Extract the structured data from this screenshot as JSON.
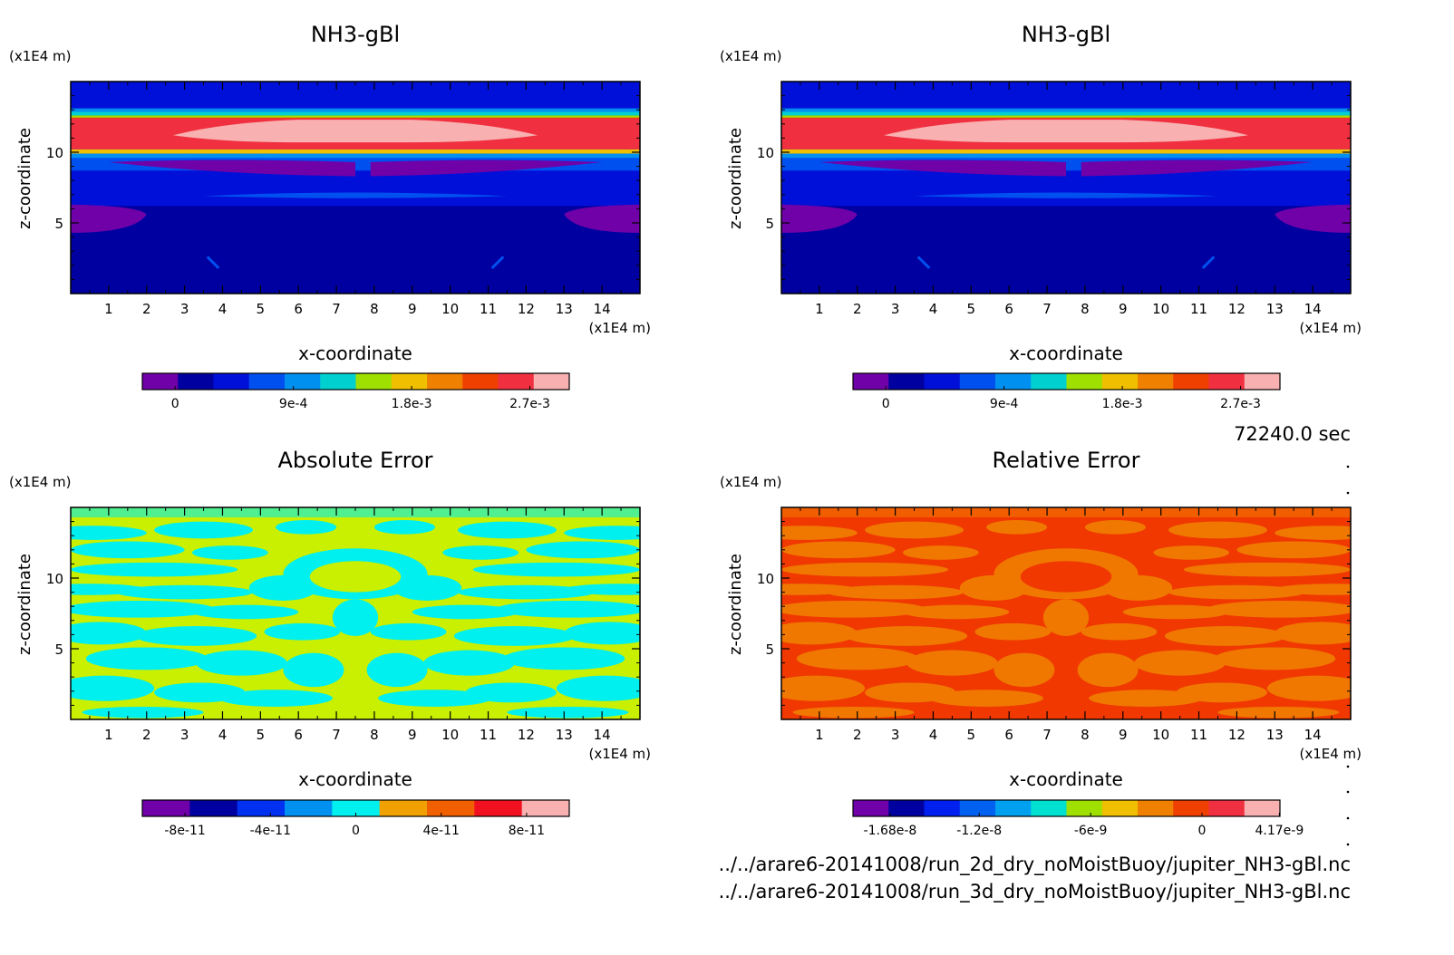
{
  "chart_data": [
    {
      "type": "heatmap",
      "title": "NH3-gBl",
      "xlabel": "x-coordinate",
      "ylabel": "z-coordinate",
      "x_unit": "(x1E4 m)",
      "y_unit": "(x1E4 m)",
      "x_ticks": [
        "1",
        "2",
        "3",
        "4",
        "5",
        "6",
        "7",
        "8",
        "9",
        "10",
        "11",
        "12",
        "13",
        "14"
      ],
      "y_ticks": [
        "5",
        "10"
      ],
      "xlim": [
        0,
        15
      ],
      "ylim": [
        0,
        15
      ],
      "field": "mixing-ratio-bands",
      "colorbar": {
        "colors": [
          "#7000a8",
          "#0000a0",
          "#0010d8",
          "#0050f0",
          "#0090f0",
          "#00d0d0",
          "#a0e000",
          "#f0c000",
          "#f08000",
          "#f04000",
          "#f03040",
          "#f8b0b0"
        ],
        "tick_labels": [
          "0",
          "9e-4",
          "1.8e-3",
          "2.7e-3"
        ],
        "tick_values": [
          0,
          0.0009,
          0.0018,
          0.0027
        ],
        "range": [
          -0.00025,
          0.003
        ]
      }
    },
    {
      "type": "heatmap",
      "title": "NH3-gBl",
      "xlabel": "x-coordinate",
      "ylabel": "z-coordinate",
      "x_unit": "(x1E4 m)",
      "y_unit": "(x1E4 m)",
      "x_ticks": [
        "1",
        "2",
        "3",
        "4",
        "5",
        "6",
        "7",
        "8",
        "9",
        "10",
        "11",
        "12",
        "13",
        "14"
      ],
      "y_ticks": [
        "5",
        "10"
      ],
      "xlim": [
        0,
        15
      ],
      "ylim": [
        0,
        15
      ],
      "field": "mixing-ratio-bands",
      "colorbar": {
        "colors": [
          "#7000a8",
          "#0000a0",
          "#0010d8",
          "#0050f0",
          "#0090f0",
          "#00d0d0",
          "#a0e000",
          "#f0c000",
          "#f08000",
          "#f04000",
          "#f03040",
          "#f8b0b0"
        ],
        "tick_labels": [
          "0",
          "9e-4",
          "1.8e-3",
          "2.7e-3"
        ],
        "tick_values": [
          0,
          0.0009,
          0.0018,
          0.0027
        ],
        "range": [
          -0.00025,
          0.003
        ]
      }
    },
    {
      "type": "heatmap",
      "title": "Absolute Error",
      "xlabel": "x-coordinate",
      "ylabel": "z-coordinate",
      "x_unit": "(x1E4 m)",
      "y_unit": "(x1E4 m)",
      "x_ticks": [
        "1",
        "2",
        "3",
        "4",
        "5",
        "6",
        "7",
        "8",
        "9",
        "10",
        "11",
        "12",
        "13",
        "14"
      ],
      "y_ticks": [
        "5",
        "10"
      ],
      "xlim": [
        0,
        15
      ],
      "ylim": [
        0,
        15
      ],
      "field": "error-pattern",
      "pattern_colors": [
        "#00f0f0",
        "#c8f000"
      ],
      "colorbar": {
        "colors": [
          "#7000a8",
          "#0000a0",
          "#0030f0",
          "#0090f0",
          "#00f0f0",
          "#f0a000",
          "#f06000",
          "#f01020",
          "#f8b0b0"
        ],
        "tick_labels": [
          "-8e-11",
          "-4e-11",
          "0",
          "4e-11",
          "8e-11"
        ],
        "tick_values": [
          -8e-11,
          -4e-11,
          0,
          4e-11,
          8e-11
        ],
        "range": [
          -1e-10,
          1e-10
        ]
      }
    },
    {
      "type": "heatmap",
      "title": "Relative Error",
      "xlabel": "x-coordinate",
      "ylabel": "z-coordinate",
      "x_unit": "(x1E4 m)",
      "y_unit": "(x1E4 m)",
      "x_ticks": [
        "1",
        "2",
        "3",
        "4",
        "5",
        "6",
        "7",
        "8",
        "9",
        "10",
        "11",
        "12",
        "13",
        "14"
      ],
      "y_ticks": [
        "5",
        "10"
      ],
      "xlim": [
        0,
        15
      ],
      "ylim": [
        0,
        15
      ],
      "field": "error-pattern",
      "pattern_colors": [
        "#f07800",
        "#f03800"
      ],
      "colorbar": {
        "colors": [
          "#7000a8",
          "#0000a0",
          "#0020f0",
          "#0060f0",
          "#00a0f0",
          "#00e0d0",
          "#a0e000",
          "#f0c000",
          "#f08000",
          "#f04000",
          "#f03040",
          "#f8b0b0"
        ],
        "tick_labels": [
          "-1.68e-8",
          "-1.2e-8",
          "-6e-9",
          "0",
          "4.17e-9"
        ],
        "tick_values": [
          -1.68e-08,
          -1.2e-08,
          -6e-09,
          0,
          4.17e-09
        ],
        "range": [
          -1.88e-08,
          4.2e-09
        ]
      }
    }
  ],
  "time_label": "72240.0 sec",
  "file_paths": [
    "../../arare6-20141008/run_2d_dry_noMoistBuoy/jupiter_NH3-gBl.nc",
    "../../arare6-20141008/run_3d_dry_noMoistBuoy/jupiter_NH3-gBl.nc"
  ]
}
